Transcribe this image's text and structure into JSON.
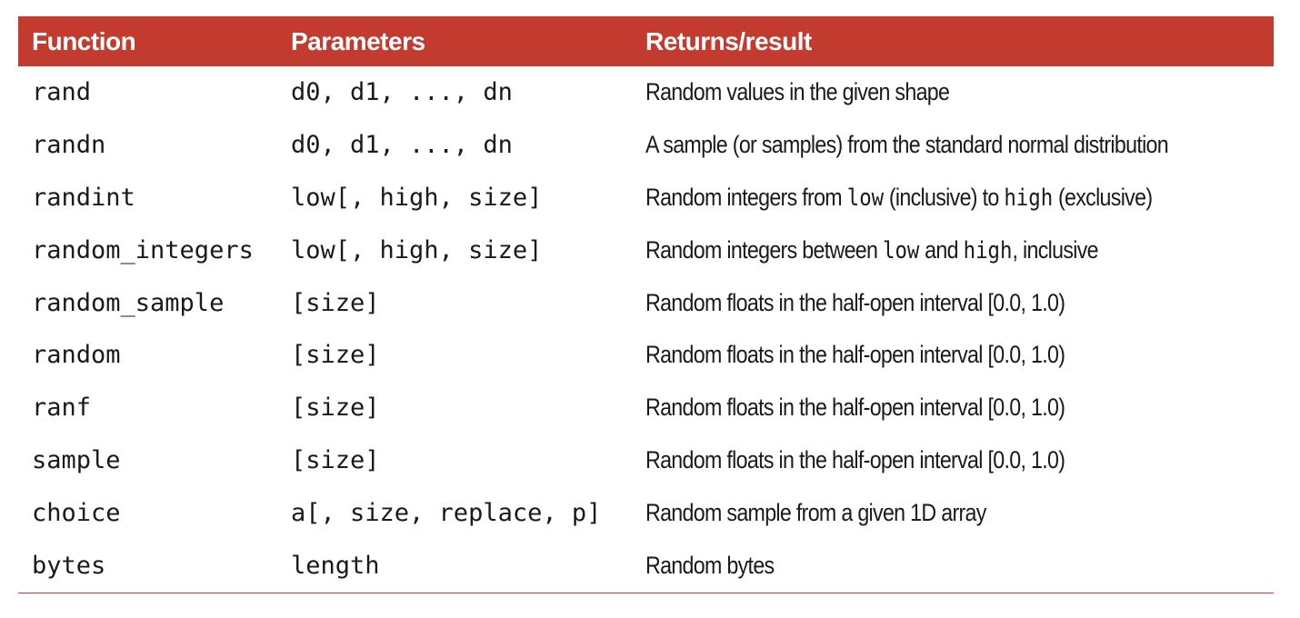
{
  "table": {
    "headers": {
      "function": "Function",
      "parameters": "Parameters",
      "returns": "Returns/result"
    },
    "rows": [
      {
        "function": "rand",
        "parameters": "d0, d1, ..., dn",
        "returns": [
          "Random values in the given shape"
        ]
      },
      {
        "function": "randn",
        "parameters": "d0, d1, ..., dn",
        "returns": [
          "A sample (or samples) from the standard normal distribution"
        ]
      },
      {
        "function": "randint",
        "parameters": "low[, high, size]",
        "returns": [
          "Random integers from ",
          "low",
          " (inclusive) to ",
          "high",
          " (exclusive)"
        ]
      },
      {
        "function": "random_integers",
        "parameters": "low[, high, size]",
        "returns": [
          "Random integers between ",
          "low",
          " and ",
          "high",
          ", inclusive"
        ]
      },
      {
        "function": "random_sample",
        "parameters": "[size]",
        "returns": [
          "Random floats in the half-open interval [0.0, 1.0)"
        ]
      },
      {
        "function": "random",
        "parameters": "[size]",
        "returns": [
          "Random floats in the half-open interval [0.0, 1.0)"
        ]
      },
      {
        "function": "ranf",
        "parameters": "[size]",
        "returns": [
          "Random floats in the half-open interval [0.0, 1.0)"
        ]
      },
      {
        "function": "sample",
        "parameters": "[size]",
        "returns": [
          "Random floats in the half-open interval [0.0, 1.0)"
        ]
      },
      {
        "function": "choice",
        "parameters": "a[, size, replace, p]",
        "returns": [
          "Random sample from a given 1D array"
        ]
      },
      {
        "function": "bytes",
        "parameters": "length",
        "returns": [
          "Random bytes"
        ]
      }
    ]
  },
  "colors": {
    "header_bg": "#c23b2e",
    "header_text": "#ffffff",
    "rule": "#c23b2e",
    "body_text": "#1a1a1a"
  }
}
